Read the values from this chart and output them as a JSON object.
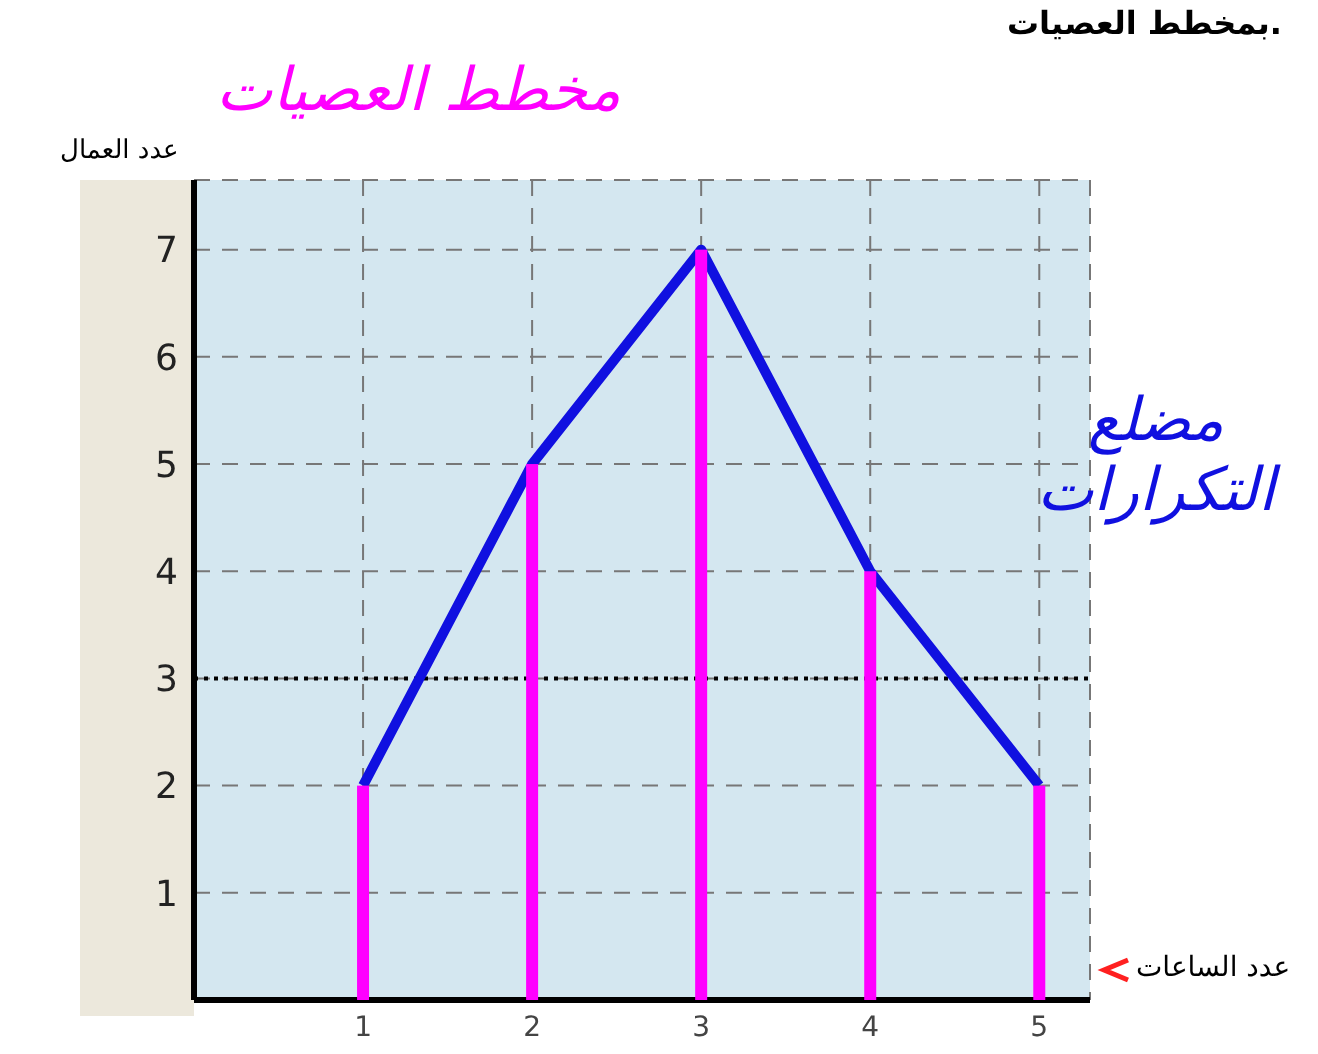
{
  "chart_data": {
    "type": "bar",
    "title": "بمخطط العصيات.",
    "xlabel": "عدد الساعات",
    "ylabel": "عدد العمال",
    "x": [
      1,
      2,
      3,
      4,
      5
    ],
    "series": [
      {
        "name": "مخطط العصيات",
        "color": "#ff00ff",
        "values": [
          2,
          5,
          7,
          4,
          2
        ]
      },
      {
        "name": "مضلع التكرارات",
        "type": "line",
        "color": "#1010e0",
        "values": [
          2,
          5,
          7,
          4,
          2
        ]
      }
    ],
    "xlim": [
      0,
      5.3
    ],
    "xticks": [
      1,
      2,
      3,
      4,
      5
    ],
    "ylim": [
      0,
      7.65
    ],
    "yticks": [
      1,
      2,
      3,
      4,
      5,
      6,
      7
    ],
    "ref_lines": [
      {
        "axis": "y",
        "value": 3,
        "color": "#000000",
        "line_style": "dotted"
      }
    ],
    "grid": true,
    "marker": "none",
    "line_style": "solid"
  }
}
